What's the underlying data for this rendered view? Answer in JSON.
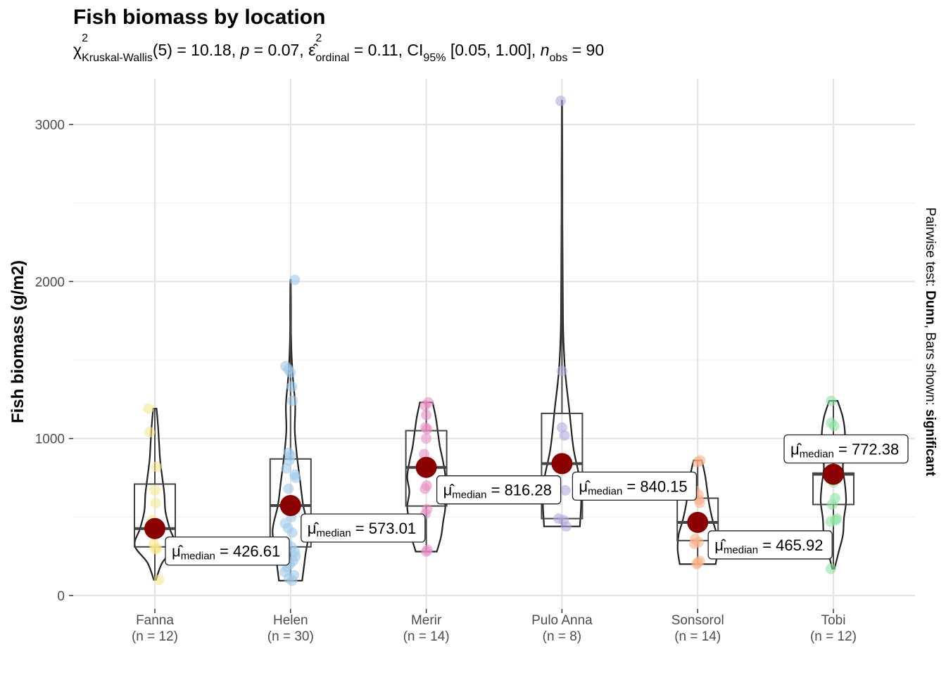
{
  "chart_data": {
    "type": "violin-box-scatter",
    "title": "Fish biomass by location",
    "subtitle": {
      "chi": "χ",
      "chi_sup": "2",
      "chi_sub": "Kruskal-Wallis",
      "df_stat": "(5) = 10.18, ",
      "p_label": "p",
      "p_value": " = 0.07, ",
      "eps": "ε̂",
      "eps_sup": "2",
      "eps_sub": "ordinal",
      "eps_value": " = 0.11, CI",
      "ci_sub": "95%",
      "ci_value": " [0.05, 1.00], ",
      "n_label": "n",
      "n_sub": "obs",
      "n_value": " = 90"
    },
    "ylabel": "Fish biomass (g/m2)",
    "right_caption": {
      "prefix": "Pairwise test: ",
      "test": "Dunn",
      "middle": ", Bars shown: ",
      "shown": "significant"
    },
    "ylim": [
      -80,
      3300
    ],
    "y_ticks": [
      0,
      1000,
      2000,
      3000
    ],
    "median_label_prefix": "μ̂",
    "median_label_sub": "median",
    "groups": [
      {
        "name": "Fanna",
        "n_label": "(n = 12)",
        "color": "#f6e68a",
        "median": 426.61,
        "median_text": "426.61",
        "box": {
          "q1": 310,
          "med": 426.61,
          "q3": 710,
          "lo": 100,
          "hi": 1190
        },
        "violin": {
          "min": 100,
          "max": 1190,
          "widths": [
            0.05,
            0.35,
            0.95,
            0.7,
            0.5,
            0.45,
            0.35,
            0.25,
            0.2,
            0.15,
            0.08
          ]
        },
        "points": [
          [
            1190,
            -0.15
          ],
          [
            1040,
            -0.12
          ],
          [
            820,
            0.04
          ],
          [
            670,
            0.0
          ],
          [
            590,
            0.02
          ],
          [
            480,
            -0.05
          ],
          [
            440,
            0.08
          ],
          [
            400,
            -0.08
          ],
          [
            330,
            -0.03
          ],
          [
            300,
            0.05
          ],
          [
            295,
            0.01
          ],
          [
            100,
            0.1
          ]
        ]
      },
      {
        "name": "Helen",
        "n_label": "(n = 30)",
        "color": "#9ec8ea",
        "median": 573.01,
        "median_text": "573.01",
        "box": {
          "q1": 310,
          "med": 573.01,
          "q3": 870,
          "lo": 95,
          "hi": 2010
        },
        "violin": {
          "min": 95,
          "max": 2010,
          "widths": [
            0.55,
            0.7,
            0.85,
            0.6,
            0.45,
            0.3,
            0.2,
            0.22,
            0.12,
            0.05,
            0.02,
            0.02,
            0.01
          ]
        },
        "points": [
          [
            2010,
            0.1
          ],
          [
            1460,
            -0.12
          ],
          [
            1440,
            -0.05
          ],
          [
            1420,
            0.0
          ],
          [
            1330,
            0.03
          ],
          [
            1240,
            0.05
          ],
          [
            910,
            -0.04
          ],
          [
            890,
            0.0
          ],
          [
            860,
            -0.03
          ],
          [
            810,
            -0.1
          ],
          [
            770,
            0.1
          ],
          [
            750,
            0.12
          ],
          [
            680,
            -0.05
          ],
          [
            600,
            0.06
          ],
          [
            550,
            -0.02
          ],
          [
            500,
            0.02
          ],
          [
            460,
            -0.13
          ],
          [
            430,
            -0.06
          ],
          [
            400,
            0.04
          ],
          [
            330,
            -0.08
          ],
          [
            310,
            0.02
          ],
          [
            280,
            0.1
          ],
          [
            250,
            0.12
          ],
          [
            220,
            0.06
          ],
          [
            200,
            -0.02
          ],
          [
            180,
            -0.08
          ],
          [
            150,
            -0.14
          ],
          [
            130,
            0.08
          ],
          [
            110,
            -0.04
          ],
          [
            95,
            0.04
          ]
        ]
      },
      {
        "name": "Merir",
        "n_label": "(n = 14)",
        "color": "#e88ec4",
        "median": 816.28,
        "median_text": "816.28",
        "box": {
          "q1": 570,
          "med": 816.28,
          "q3": 1050,
          "lo": 280,
          "hi": 1230
        },
        "violin": {
          "min": 280,
          "max": 1230,
          "widths": [
            0.5,
            0.7,
            0.8,
            0.9,
            0.8,
            0.9,
            0.8,
            0.65,
            0.55,
            0.45,
            0.3
          ]
        },
        "points": [
          [
            1230,
            0.05
          ],
          [
            1210,
            -0.03
          ],
          [
            1150,
            0.0
          ],
          [
            1070,
            -0.02
          ],
          [
            1060,
            0.02
          ],
          [
            1000,
            0.0
          ],
          [
            900,
            -0.05
          ],
          [
            850,
            0.04
          ],
          [
            700,
            0.01
          ],
          [
            680,
            -0.03
          ],
          [
            550,
            0.02
          ],
          [
            520,
            -0.02
          ],
          [
            290,
            0.03
          ],
          [
            280,
            0.0
          ]
        ]
      },
      {
        "name": "Pulo Anna",
        "n_label": "(n = 8)",
        "color": "#b8a6de",
        "median": 840.15,
        "median_text": "840.15",
        "box": {
          "q1": 490,
          "med": 840.15,
          "q3": 1160,
          "lo": 440,
          "hi": 3150
        },
        "violin": {
          "min": 440,
          "max": 3150,
          "widths": [
            0.85,
            0.9,
            0.55,
            0.35,
            0.15,
            0.06,
            0.04,
            0.03,
            0.02,
            0.02,
            0.015,
            0.01
          ]
        },
        "points": [
          [
            3150,
            -0.03
          ],
          [
            1430,
            0.0
          ],
          [
            1070,
            0.0
          ],
          [
            1020,
            0.06
          ],
          [
            670,
            0.08
          ],
          [
            490,
            -0.08
          ],
          [
            480,
            0.04
          ],
          [
            440,
            0.1
          ]
        ]
      },
      {
        "name": "Sonsorol",
        "n_label": "(n = 14)",
        "color": "#f9b08a",
        "median": 465.92,
        "median_text": "465.92",
        "box": {
          "q1": 350,
          "med": 465.92,
          "q3": 620,
          "lo": 200,
          "hi": 860
        },
        "violin": {
          "min": 200,
          "max": 860,
          "widths": [
            0.85,
            0.95,
            0.9,
            0.7,
            0.55,
            0.45,
            0.35,
            0.2
          ]
        },
        "points": [
          [
            860,
            0.06
          ],
          [
            850,
            0.0
          ],
          [
            670,
            -0.07
          ],
          [
            640,
            0.02
          ],
          [
            610,
            0.03
          ],
          [
            590,
            0.05
          ],
          [
            480,
            -0.04
          ],
          [
            470,
            0.0
          ],
          [
            360,
            -0.06
          ],
          [
            340,
            0.02
          ],
          [
            330,
            -0.08
          ],
          [
            220,
            0.05
          ],
          [
            210,
            0.0
          ],
          [
            200,
            -0.02
          ]
        ]
      },
      {
        "name": "Tobi",
        "n_label": "(n = 12)",
        "color": "#8de3a3",
        "median": 772.38,
        "median_text": "772.38",
        "box": {
          "q1": 580,
          "med": 772.38,
          "q3": 780,
          "lo": 170,
          "hi": 1240
        },
        "violin": {
          "min": 170,
          "max": 1240,
          "widths": [
            0.05,
            0.25,
            0.45,
            0.5,
            0.6,
            0.55,
            0.45,
            0.5,
            0.55,
            0.45,
            0.2
          ]
        },
        "points": [
          [
            1240,
            -0.05
          ],
          [
            1100,
            -0.05
          ],
          [
            1080,
            0.02
          ],
          [
            800,
            0.03
          ],
          [
            770,
            -0.02
          ],
          [
            720,
            0.0
          ],
          [
            620,
            0.04
          ],
          [
            580,
            -0.03
          ],
          [
            490,
            0.08
          ],
          [
            480,
            0.05
          ],
          [
            470,
            -0.06
          ],
          [
            170,
            -0.06
          ]
        ]
      }
    ]
  }
}
